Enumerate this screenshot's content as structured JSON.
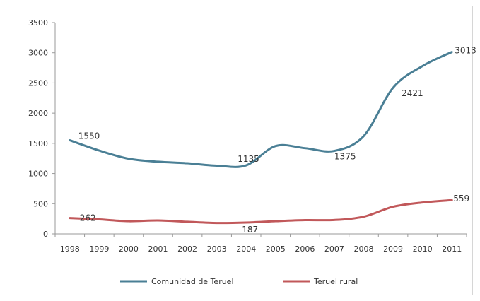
{
  "chart_data": {
    "type": "line",
    "categories": [
      "1998",
      "1999",
      "2000",
      "2001",
      "2002",
      "2003",
      "2004",
      "2005",
      "2006",
      "2007",
      "2008",
      "2009",
      "2010",
      "2011"
    ],
    "series": [
      {
        "name": "Comunidad de Teruel",
        "color": "#4a7f95",
        "values": [
          1550,
          1380,
          1245,
          1195,
          1170,
          1130,
          1135,
          1455,
          1420,
          1375,
          1620,
          2421,
          2780,
          3013
        ],
        "labels": [
          {
            "index": 0,
            "text": "1550"
          },
          {
            "index": 6,
            "text": "1135"
          },
          {
            "index": 9,
            "text": "1375"
          },
          {
            "index": 11,
            "text": "2421"
          },
          {
            "index": 13,
            "text": "3013"
          }
        ]
      },
      {
        "name": "Teruel rural",
        "color": "#c1585a",
        "values": [
          262,
          240,
          210,
          222,
          200,
          180,
          187,
          210,
          228,
          230,
          285,
          450,
          520,
          559
        ],
        "labels": [
          {
            "index": 0,
            "text": "262"
          },
          {
            "index": 6,
            "text": "187"
          },
          {
            "index": 13,
            "text": "559"
          }
        ]
      }
    ],
    "ylim": [
      0,
      3500
    ],
    "yticks": [
      "3500",
      "3000",
      "2500",
      "2000",
      "1500",
      "1000",
      "500",
      "0"
    ],
    "legend_position": "bottom",
    "grid": false,
    "title": "",
    "xlabel": "",
    "ylabel": ""
  }
}
